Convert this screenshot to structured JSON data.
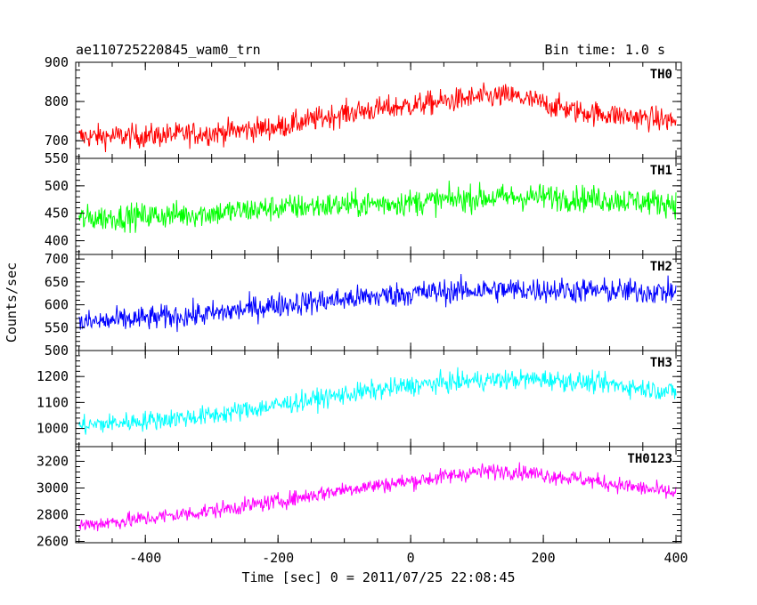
{
  "chart_data": {
    "type": "line",
    "title": "ae110725220845_wam0_trn",
    "bin_time": "Bin time: 1.0 s",
    "xlabel": "Time [sec] 0 = 2011/07/25 22:08:45",
    "ylabel": "Counts/sec",
    "xlim": [
      -505,
      408
    ],
    "x_ticks": [
      -400,
      -200,
      0,
      200,
      400
    ],
    "x_start": -500,
    "x_end": 400,
    "grid": false,
    "legend": "none",
    "panels": [
      {
        "name": "TH0",
        "color": "#ff0000",
        "ylim": [
          655,
          900
        ],
        "y_ticks": [
          700,
          800,
          900
        ],
        "trend": [
          [
            -500,
            710
          ],
          [
            -400,
            712
          ],
          [
            -300,
            720
          ],
          [
            -200,
            735
          ],
          [
            -100,
            770
          ],
          [
            0,
            790
          ],
          [
            100,
            810
          ],
          [
            150,
            815
          ],
          [
            250,
            775
          ],
          [
            400,
            750
          ]
        ],
        "noise": 28
      },
      {
        "name": "TH1",
        "color": "#00ff00",
        "ylim": [
          375,
          550
        ],
        "y_ticks": [
          400,
          450,
          500,
          550
        ],
        "trend": [
          [
            -500,
            440
          ],
          [
            -400,
            445
          ],
          [
            -300,
            450
          ],
          [
            -200,
            460
          ],
          [
            -100,
            465
          ],
          [
            0,
            470
          ],
          [
            100,
            478
          ],
          [
            200,
            480
          ],
          [
            300,
            475
          ],
          [
            400,
            468
          ]
        ],
        "noise": 22
      },
      {
        "name": "TH2",
        "color": "#0000ff",
        "ylim": [
          500,
          710
        ],
        "y_ticks": [
          500,
          550,
          600,
          650,
          700
        ],
        "trend": [
          [
            -500,
            560
          ],
          [
            -400,
            570
          ],
          [
            -300,
            580
          ],
          [
            -200,
            600
          ],
          [
            -100,
            612
          ],
          [
            0,
            625
          ],
          [
            100,
            632
          ],
          [
            200,
            633
          ],
          [
            300,
            630
          ],
          [
            400,
            628
          ]
        ],
        "noise": 25
      },
      {
        "name": "TH3",
        "color": "#00ffff",
        "ylim": [
          930,
          1300
        ],
        "y_ticks": [
          1000,
          1100,
          1200
        ],
        "trend": [
          [
            -500,
            1010
          ],
          [
            -400,
            1030
          ],
          [
            -300,
            1050
          ],
          [
            -200,
            1090
          ],
          [
            -100,
            1130
          ],
          [
            0,
            1165
          ],
          [
            100,
            1185
          ],
          [
            200,
            1190
          ],
          [
            300,
            1170
          ],
          [
            400,
            1140
          ]
        ],
        "noise": 35
      },
      {
        "name": "TH0123",
        "color": "#ff00ff",
        "ylim": [
          2590,
          3310
        ],
        "y_ticks": [
          2600,
          2800,
          3000,
          3200
        ],
        "trend": [
          [
            -500,
            2720
          ],
          [
            -400,
            2770
          ],
          [
            -300,
            2830
          ],
          [
            -200,
            2900
          ],
          [
            -100,
            2990
          ],
          [
            0,
            3050
          ],
          [
            100,
            3120
          ],
          [
            150,
            3130
          ],
          [
            250,
            3070
          ],
          [
            400,
            2960
          ]
        ],
        "noise": 55
      }
    ]
  }
}
